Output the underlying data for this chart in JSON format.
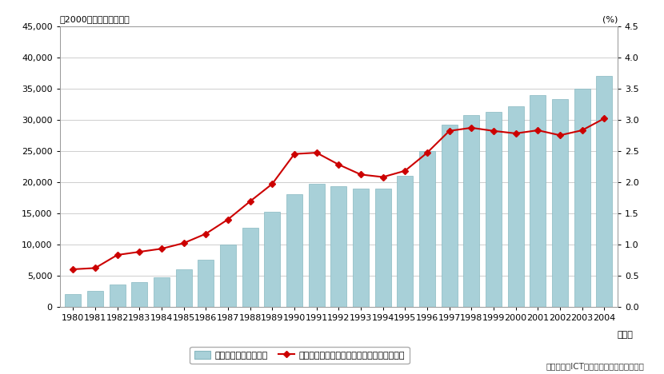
{
  "years": [
    1980,
    1981,
    1982,
    1983,
    1984,
    1985,
    1986,
    1987,
    1988,
    1989,
    1990,
    1991,
    1992,
    1993,
    1994,
    1995,
    1996,
    1997,
    1998,
    1999,
    2000,
    2001,
    2002,
    2003,
    2004
  ],
  "bar_values": [
    2000,
    2500,
    3500,
    4000,
    4700,
    6000,
    7500,
    10000,
    12700,
    15200,
    18000,
    19700,
    19300,
    19000,
    19000,
    21000,
    25000,
    29200,
    30800,
    31300,
    32200,
    33900,
    33300,
    35000,
    37000
  ],
  "line_values": [
    0.6,
    0.62,
    0.83,
    0.88,
    0.93,
    1.02,
    1.17,
    1.4,
    1.69,
    1.97,
    2.45,
    2.47,
    2.28,
    2.12,
    2.08,
    2.18,
    2.47,
    2.82,
    2.87,
    2.82,
    2.78,
    2.83,
    2.75,
    2.83,
    3.02
  ],
  "bar_color": "#a8d0d8",
  "bar_edgecolor": "#88b8c0",
  "line_color": "#cc0000",
  "marker_color": "#cc0000",
  "background_color": "#ffffff",
  "grid_color": "#bbbbbb",
  "ylabel_left": "（2000年価格、十億円）",
  "ylabel_right": "(%)",
  "ylim_left": [
    0,
    45000
  ],
  "ylim_right": [
    0,
    4.5
  ],
  "yticks_left": [
    0,
    5000,
    10000,
    15000,
    20000,
    25000,
    30000,
    35000,
    40000,
    45000
  ],
  "yticks_right": [
    0.0,
    0.5,
    1.0,
    1.5,
    2.0,
    2.5,
    3.0,
    3.5,
    4.0,
    4.5
  ],
  "legend_bar_label": "民間情報資本ストック",
  "legend_line_label": "民間資本ストックに占める情報通信資本比率",
  "source_text": "（出典）「ICTの経済分析に関する調査」",
  "xlabel": "（年）",
  "tick_fontsize": 8,
  "label_fontsize": 8.5
}
